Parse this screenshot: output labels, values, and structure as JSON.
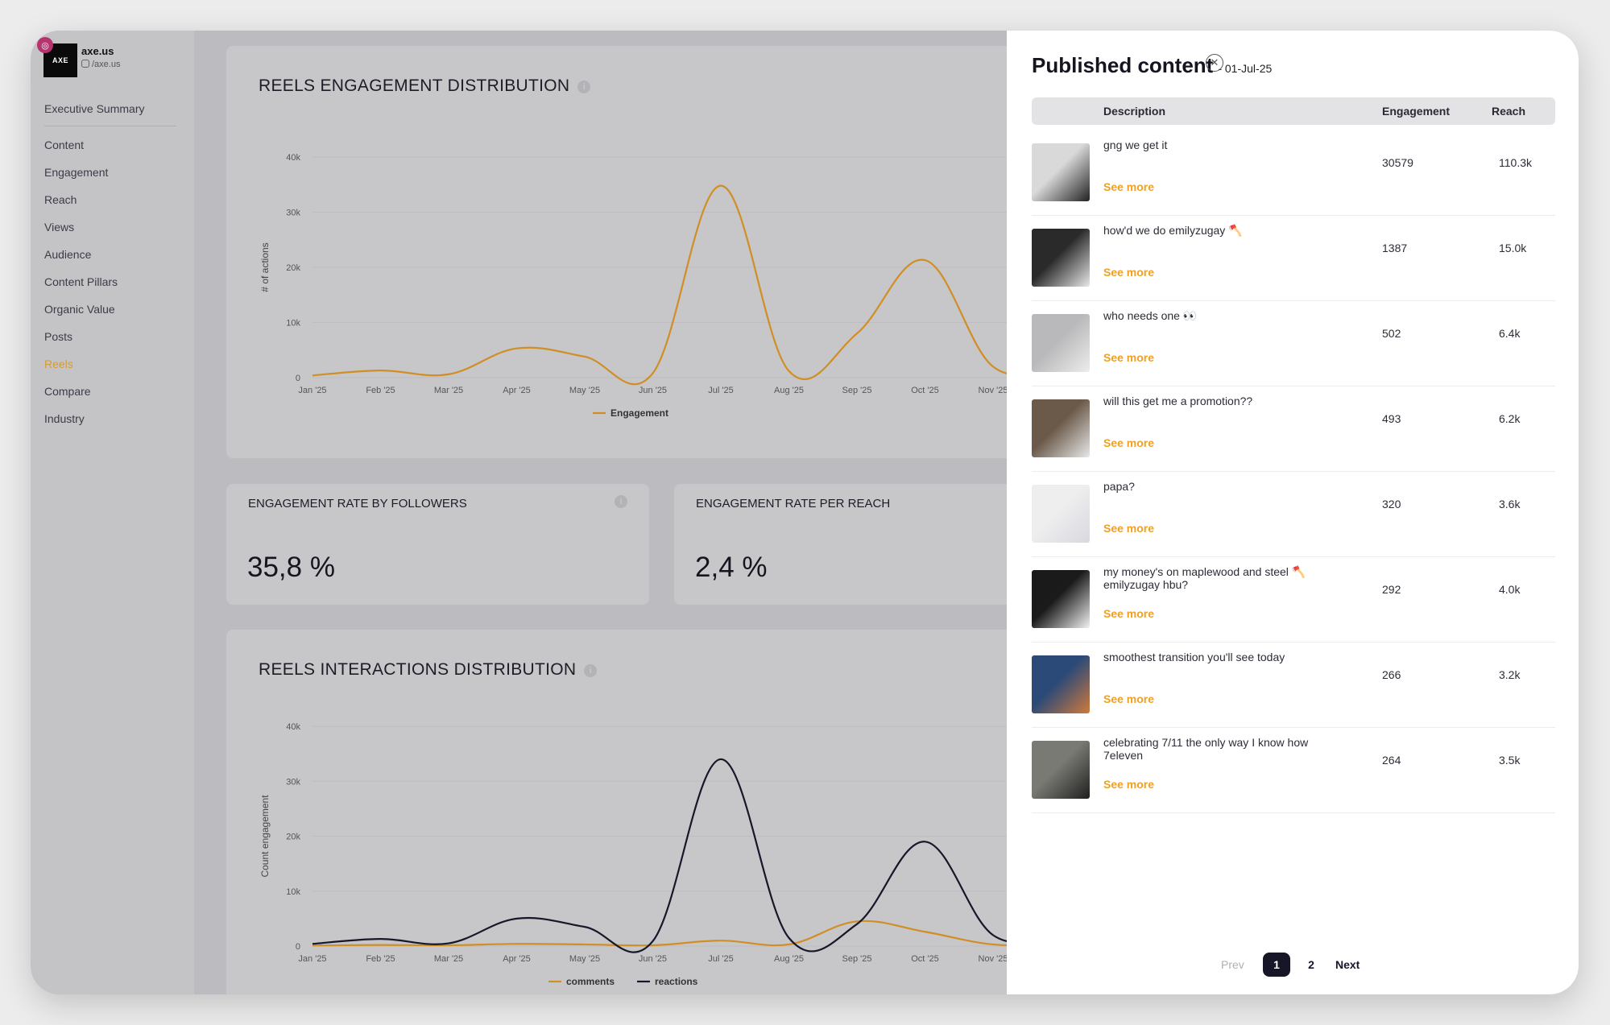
{
  "brand": {
    "logo_text": "AXE",
    "name": "axe.us",
    "handle": "/axe.us"
  },
  "sidebar": {
    "exec_summary": "Executive Summary",
    "items": [
      {
        "label": "Content"
      },
      {
        "label": "Engagement"
      },
      {
        "label": "Reach"
      },
      {
        "label": "Views"
      },
      {
        "label": "Audience"
      },
      {
        "label": "Content Pillars"
      },
      {
        "label": "Organic Value"
      },
      {
        "label": "Posts"
      },
      {
        "label": "Reels",
        "active": true
      },
      {
        "label": "Compare"
      },
      {
        "label": "Industry"
      }
    ]
  },
  "cards": {
    "engagement_dist_title": "REELS ENGAGEMENT DISTRIBUTION",
    "rate_followers_title": "ENGAGEMENT RATE BY FOLLOWERS",
    "rate_followers_value": "35,8 %",
    "rate_reach_title": "ENGAGEMENT RATE PER REACH",
    "rate_reach_value": "2,4 %",
    "interactions_title": "REELS INTERACTIONS DISTRIBUTION"
  },
  "chart_data": [
    {
      "type": "line",
      "title": "REELS ENGAGEMENT DISTRIBUTION",
      "ylabel": "# of actions",
      "x": [
        "Jan '25",
        "Feb '25",
        "Mar '25",
        "Apr '25",
        "May '25",
        "Jun '25",
        "Jul '25",
        "Aug '25",
        "Sep '25",
        "Oct '25",
        "Nov '25"
      ],
      "y_ticks": [
        "0",
        "10k",
        "20k",
        "30k",
        "40k"
      ],
      "ylim": [
        0,
        40000
      ],
      "legend": "bottom",
      "series": [
        {
          "name": "Engagement",
          "color": "#d08e25",
          "values": [
            400,
            1300,
            600,
            5300,
            3800,
            800,
            34800,
            1200,
            8000,
            21300,
            2000
          ]
        }
      ]
    },
    {
      "type": "line",
      "title": "REELS INTERACTIONS DISTRIBUTION",
      "ylabel": "Count engagement",
      "x": [
        "Jan '25",
        "Feb '25",
        "Mar '25",
        "Apr '25",
        "May '25",
        "Jun '25",
        "Jul '25",
        "Aug '25",
        "Sep '25",
        "Oct '25",
        "Nov '25"
      ],
      "y_ticks": [
        "0",
        "10k",
        "20k",
        "30k",
        "40k"
      ],
      "ylim": [
        0,
        40000
      ],
      "legend": "bottom",
      "series": [
        {
          "name": "comments",
          "color": "#d08e25",
          "values": [
            100,
            200,
            150,
            400,
            300,
            150,
            1000,
            300,
            4500,
            2600,
            300
          ]
        },
        {
          "name": "reactions",
          "color": "#17172a",
          "values": [
            400,
            1300,
            500,
            5000,
            3500,
            900,
            34000,
            1500,
            4000,
            19000,
            2000
          ]
        }
      ]
    }
  ],
  "panel": {
    "title": "Published content",
    "date": "- 01-Jul-25",
    "col_description": "Description",
    "col_engagement": "Engagement",
    "col_reach": "Reach",
    "see_more": "See more",
    "rows": [
      {
        "desc": "gng we get it",
        "engagement": "30579",
        "reach": "110.3k"
      },
      {
        "desc": "how'd we do emilyzugay 🪓",
        "engagement": "1387",
        "reach": "15.0k"
      },
      {
        "desc": "who needs one 👀",
        "engagement": "502",
        "reach": "6.4k"
      },
      {
        "desc": "will this get me a promotion??",
        "engagement": "493",
        "reach": "6.2k"
      },
      {
        "desc": "papa?",
        "engagement": "320",
        "reach": "3.6k"
      },
      {
        "desc": "my money's on maplewood and steel 🪓 emilyzugay hbu?",
        "engagement": "292",
        "reach": "4.0k"
      },
      {
        "desc": "smoothest transition you'll see today",
        "engagement": "266",
        "reach": "3.2k"
      },
      {
        "desc": "celebrating 7/11 the only way I know how 7eleven",
        "engagement": "264",
        "reach": "3.5k"
      }
    ],
    "pagination": {
      "prev": "Prev",
      "pages": [
        "1",
        "2"
      ],
      "current": "1",
      "next": "Next"
    }
  }
}
